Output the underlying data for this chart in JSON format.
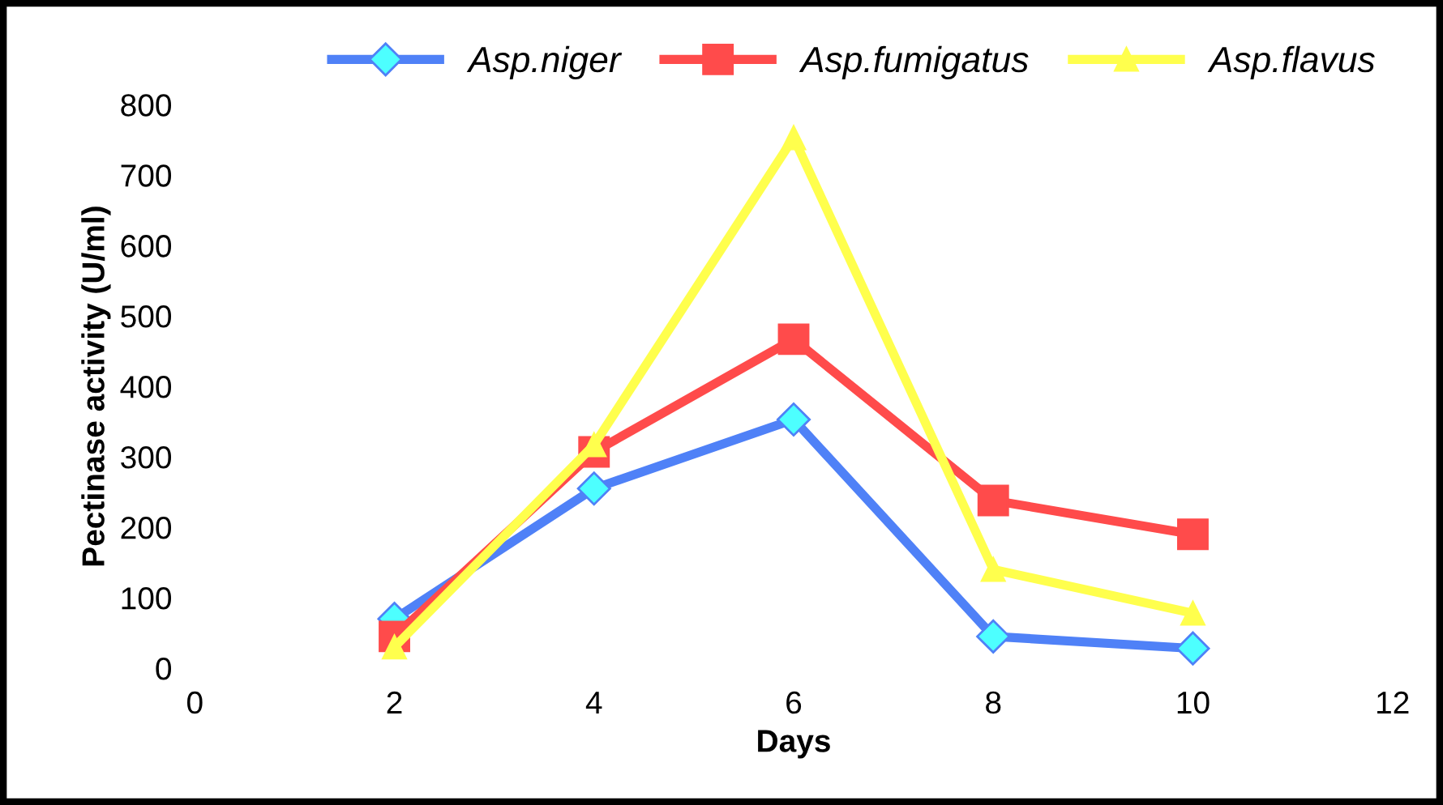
{
  "chart_data": {
    "type": "line",
    "xlabel": "Days",
    "ylabel": "Pectinase activity (U/ml)",
    "x": [
      2,
      4,
      6,
      8,
      10
    ],
    "series": [
      {
        "name": "Asp.niger",
        "color": "#4f81f7",
        "marker": "diamond",
        "values": [
          70,
          255,
          353,
          45,
          28
        ]
      },
      {
        "name": "Asp.fumigatus",
        "color": "#ff4b4b",
        "marker": "square",
        "values": [
          45,
          307,
          467,
          238,
          190
        ]
      },
      {
        "name": "Asp.flavus",
        "color": "#ffff4d",
        "marker": "triangle",
        "values": [
          30,
          317,
          753,
          140,
          78
        ]
      }
    ],
    "xlim": [
      0,
      12
    ],
    "xticks": [
      0,
      2,
      4,
      6,
      8,
      10,
      12
    ],
    "ylim": [
      0,
      800
    ],
    "yticks": [
      0,
      100,
      200,
      300,
      400,
      500,
      600,
      700,
      800
    ],
    "grid": false,
    "legend": "top"
  }
}
